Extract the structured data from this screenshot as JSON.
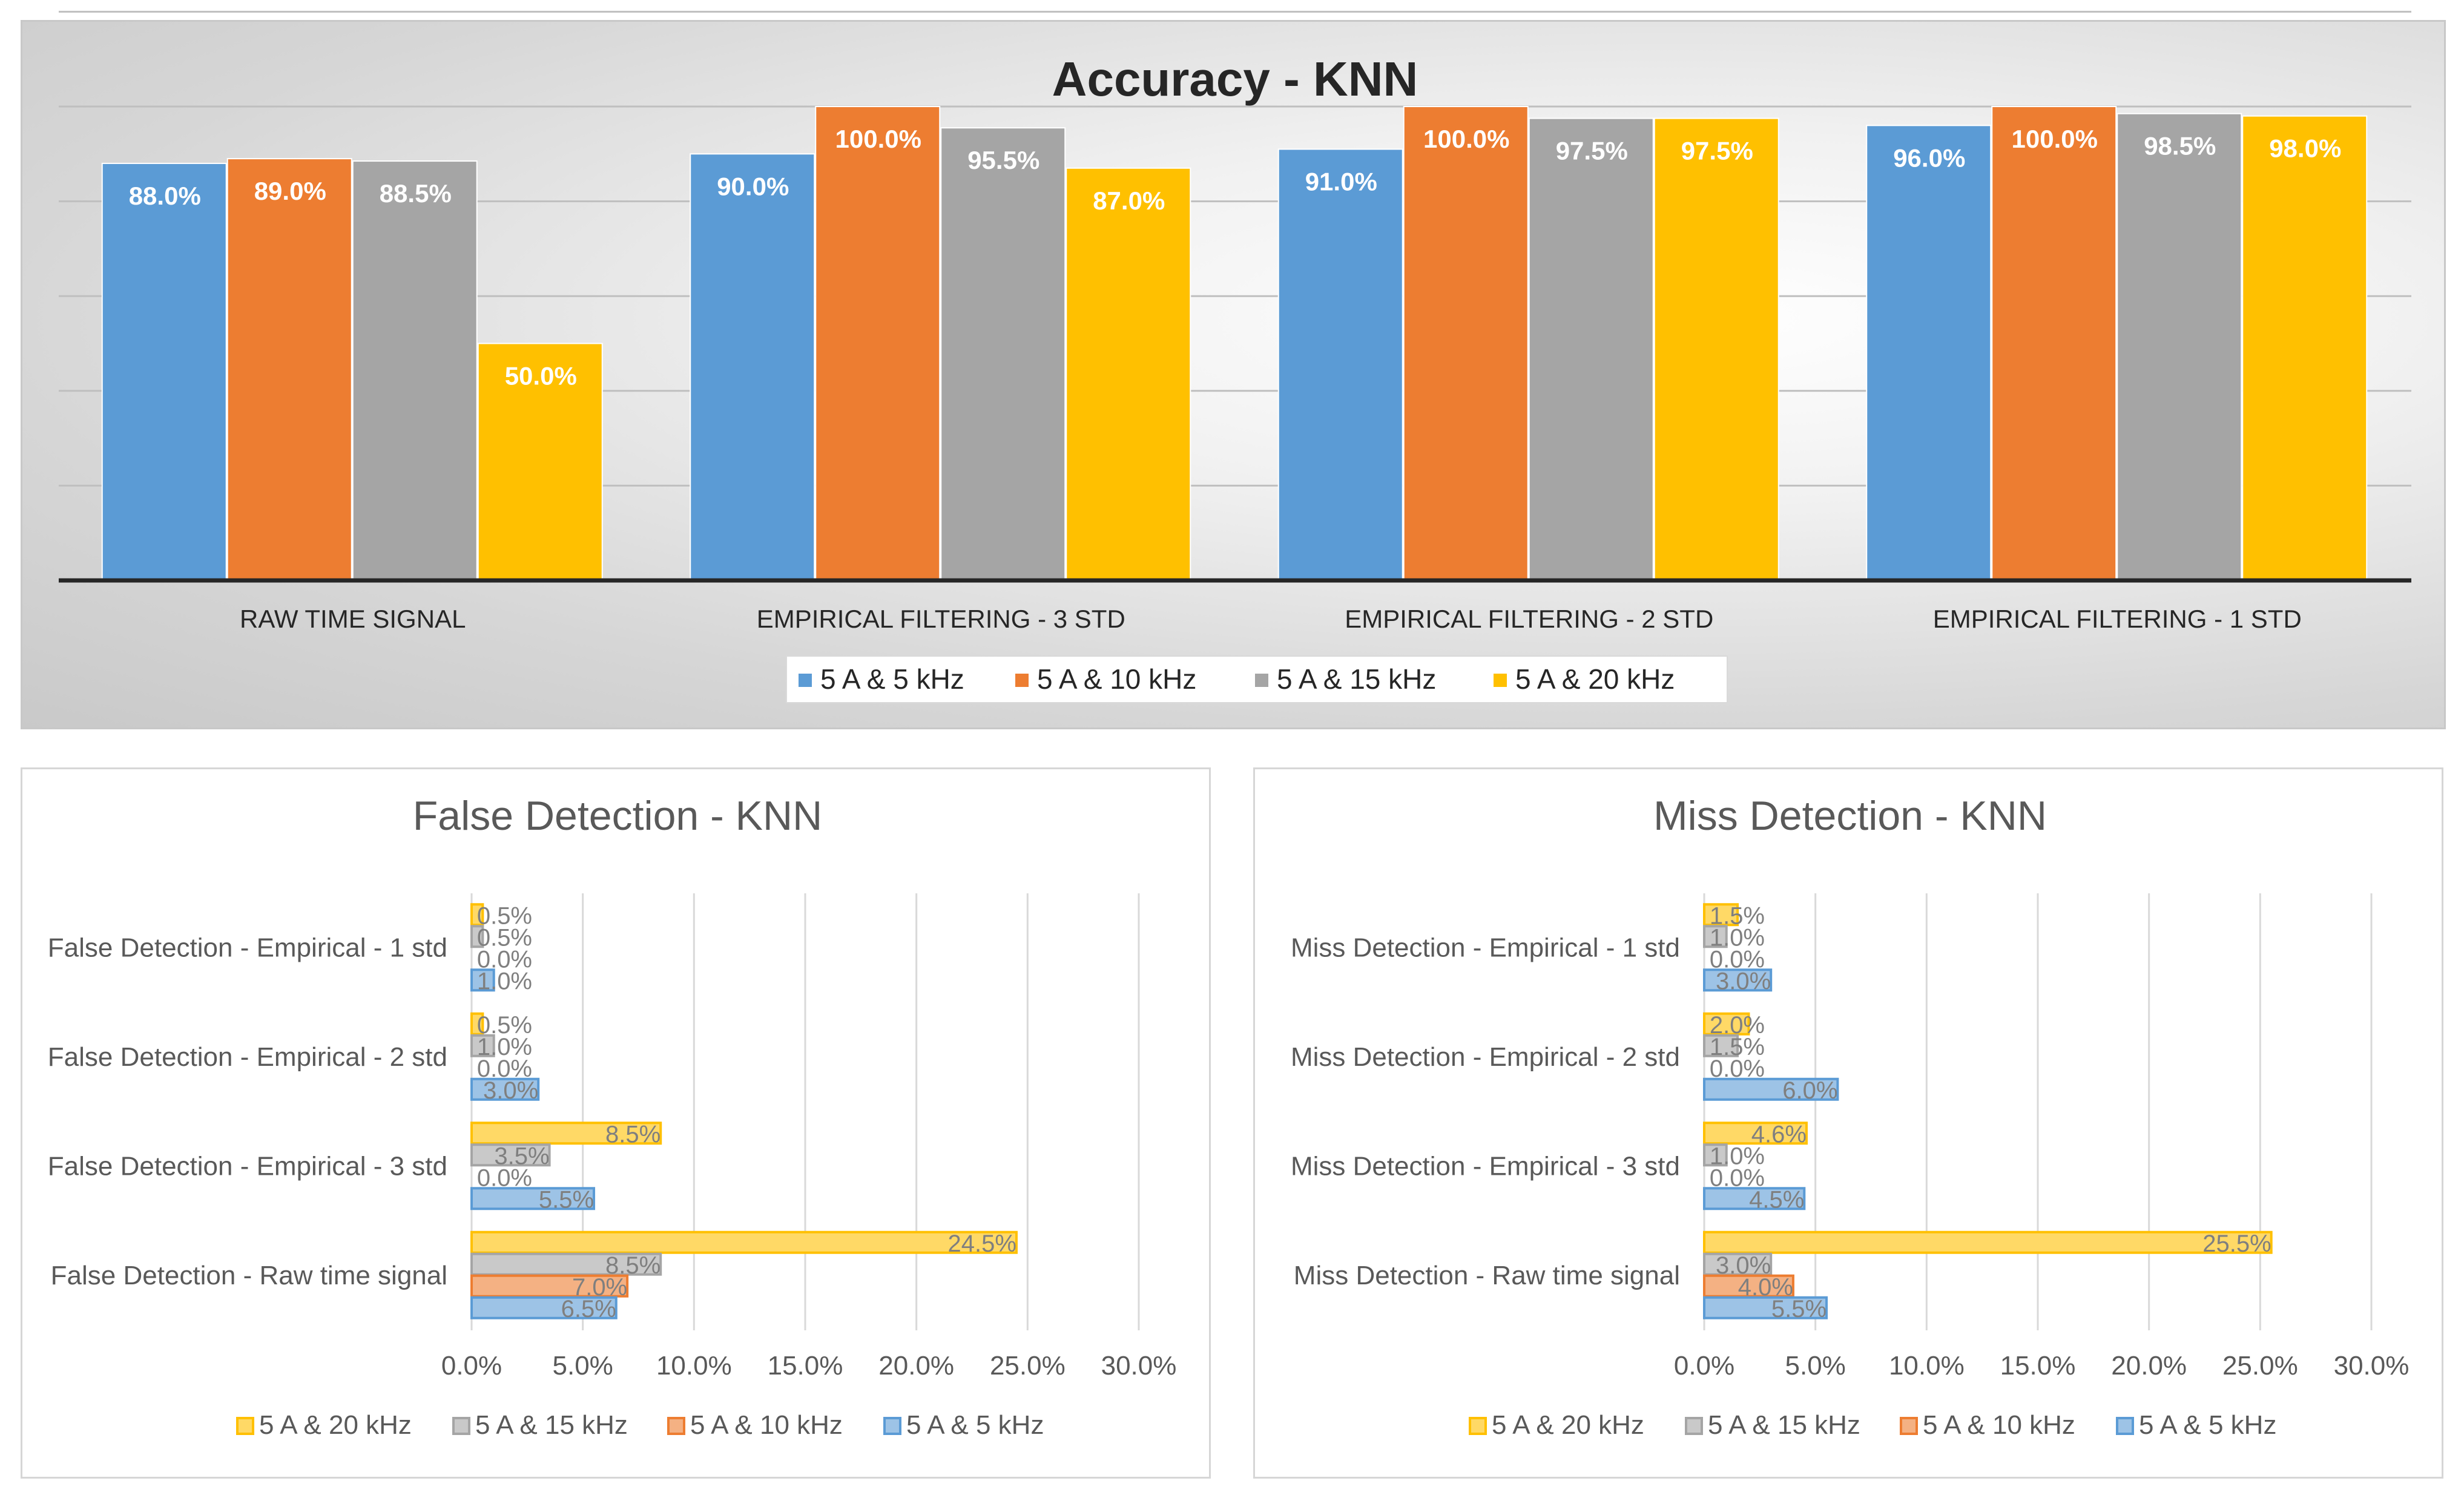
{
  "colors": {
    "s5": "#5b9bd5",
    "s10": "#ed7d31",
    "s15": "#a5a5a5",
    "s20": "#ffc000",
    "s5_light": "#9dc3e6",
    "s10_light": "#f4b183",
    "s15_light": "#c9c9c9",
    "s20_light": "#ffd966",
    "gridline": "#bfbfbf",
    "axis": "#404040",
    "text": "#595959"
  },
  "chart_data": [
    {
      "type": "bar",
      "orientation": "vertical",
      "title": "Accuracy - KNN",
      "categories": [
        "RAW TIME SIGNAL",
        "EMPIRICAL FILTERING - 3 STD",
        "EMPIRICAL FILTERING - 2 STD",
        "EMPIRICAL FILTERING - 1 STD"
      ],
      "series": [
        {
          "name": "5 A & 5 kHz",
          "key": "s5",
          "values": [
            88.0,
            90.0,
            91.0,
            96.0
          ],
          "labels": [
            "88.0%",
            "90.0%",
            "91.0%",
            "96.0%"
          ]
        },
        {
          "name": "5 A & 10 kHz",
          "key": "s10",
          "values": [
            89.0,
            100.0,
            100.0,
            100.0
          ],
          "labels": [
            "89.0%",
            "100.0%",
            "100.0%",
            "100.0%"
          ]
        },
        {
          "name": "5 A & 15 kHz",
          "key": "s15",
          "values": [
            88.5,
            95.5,
            97.5,
            98.5
          ],
          "labels": [
            "88.5%",
            "95.5%",
            "97.5%",
            "98.5%"
          ]
        },
        {
          "name": "5 A & 20 kHz",
          "key": "s20",
          "values": [
            50.0,
            87.0,
            97.5,
            98.0
          ],
          "labels": [
            "50.0%",
            "87.0%",
            "97.5%",
            "98.0%"
          ]
        }
      ],
      "ylim": [
        0,
        100
      ],
      "grid": true,
      "legend": "bottom"
    },
    {
      "type": "bar",
      "orientation": "horizontal",
      "title": "False Detection - KNN",
      "categories": [
        "False Detection - Raw time signal",
        "False Detection - Empirical - 3 std",
        "False Detection - Empirical - 2 std",
        "False Detection - Empirical - 1 std"
      ],
      "series": [
        {
          "name": "5 A & 5 kHz",
          "key": "s5",
          "values": [
            6.5,
            5.5,
            3.0,
            1.0
          ],
          "labels": [
            "6.5%",
            "5.5%",
            "3.0%",
            "1.0%"
          ]
        },
        {
          "name": "5 A & 10 kHz",
          "key": "s10",
          "values": [
            7.0,
            0.0,
            0.0,
            0.0
          ],
          "labels": [
            "7.0%",
            "0.0%",
            "0.0%",
            "0.0%"
          ]
        },
        {
          "name": "5 A & 15 kHz",
          "key": "s15",
          "values": [
            8.5,
            3.5,
            1.0,
            0.5
          ],
          "labels": [
            "8.5%",
            "3.5%",
            "1.0%",
            "0.5%"
          ]
        },
        {
          "name": "5 A & 20 kHz",
          "key": "s20",
          "values": [
            24.5,
            8.5,
            0.5,
            0.5
          ],
          "labels": [
            "24.5%",
            "8.5%",
            "0.5%",
            "0.5%"
          ]
        }
      ],
      "xlim": [
        0,
        30
      ],
      "xticks": [
        "0.0%",
        "5.0%",
        "10.0%",
        "15.0%",
        "20.0%",
        "25.0%",
        "30.0%"
      ],
      "legend": "bottom",
      "legend_order": [
        "5 A & 20 kHz",
        "5 A & 15 kHz",
        "5 A & 10 kHz",
        "5 A & 5 kHz"
      ]
    },
    {
      "type": "bar",
      "orientation": "horizontal",
      "title": "Miss Detection - KNN",
      "categories": [
        "Miss Detection - Raw time signal",
        "Miss Detection - Empirical - 3 std",
        "Miss Detection - Empirical - 2 std",
        "Miss Detection - Empirical - 1 std"
      ],
      "series": [
        {
          "name": "5 A & 5 kHz",
          "key": "s5",
          "values": [
            5.5,
            4.5,
            6.0,
            3.0
          ],
          "labels": [
            "5.5%",
            "4.5%",
            "6.0%",
            "3.0%"
          ]
        },
        {
          "name": "5 A & 10 kHz",
          "key": "s10",
          "values": [
            4.0,
            0.0,
            0.0,
            0.0
          ],
          "labels": [
            "4.0%",
            "0.0%",
            "0.0%",
            "0.0%"
          ]
        },
        {
          "name": "5 A & 15 kHz",
          "key": "s15",
          "values": [
            3.0,
            1.0,
            1.5,
            1.0
          ],
          "labels": [
            "3.0%",
            "1.0%",
            "1.5%",
            "1.0%"
          ]
        },
        {
          "name": "5 A & 20 kHz",
          "key": "s20",
          "values": [
            25.5,
            4.6,
            2.0,
            1.5
          ],
          "labels": [
            "25.5%",
            "4.6%",
            "2.0%",
            "1.5%"
          ]
        }
      ],
      "xlim": [
        0,
        30
      ],
      "xticks": [
        "0.0%",
        "5.0%",
        "10.0%",
        "15.0%",
        "20.0%",
        "25.0%",
        "30.0%"
      ],
      "legend": "bottom",
      "legend_order": [
        "5 A & 20 kHz",
        "5 A & 15 kHz",
        "5 A & 10 kHz",
        "5 A & 5 kHz"
      ]
    }
  ]
}
